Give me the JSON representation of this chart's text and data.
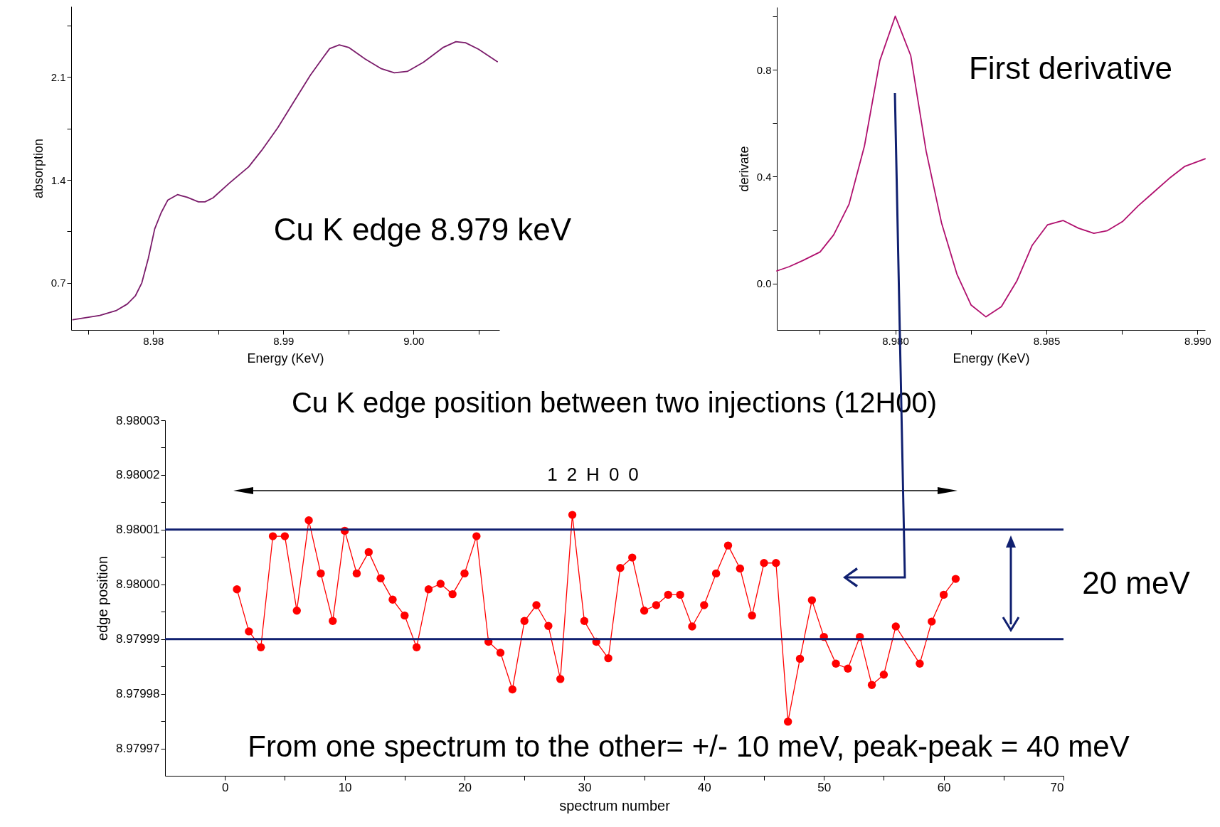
{
  "chart_data": [
    {
      "type": "line",
      "xlabel": "Energy (KeV)",
      "ylabel": "absorption",
      "annotations": [
        "Cu K edge 8.979 keV"
      ],
      "xlim": [
        8.9737,
        9.0066
      ],
      "xticks": [
        {
          "value": 8.975,
          "label": null
        },
        8.98,
        {
          "value": 8.985,
          "label": null
        },
        8.99,
        {
          "value": 8.995,
          "label": null
        },
        {
          "value": 9,
          "label": "9.00"
        },
        {
          "value": 9.005,
          "label": null
        }
      ],
      "ylim": [
        0.38,
        2.58
      ],
      "yticks": [
        0.7,
        {
          "value": 1.05,
          "label": null
        },
        1.4,
        {
          "value": 1.75,
          "label": null
        },
        2.1,
        {
          "value": 2.45,
          "label": null
        }
      ],
      "series": [
        {
          "color": "#7b1c6b",
          "x": [
            8.97383,
            8.9759,
            8.97714,
            8.97801,
            8.97863,
            8.97913,
            8.97963,
            8.98012,
            8.98062,
            8.98112,
            8.98187,
            8.98261,
            8.98348,
            8.98398,
            8.9846,
            8.98585,
            8.98734,
            8.98833,
            8.98958,
            8.99082,
            8.99207,
            8.99306,
            8.99356,
            8.9943,
            8.99505,
            8.99629,
            8.99754,
            8.99853,
            8.99953,
            9.00077,
            9.00226,
            9.00326,
            9.004,
            9.005,
            9.00644
          ],
          "values": [
            0.449,
            0.478,
            0.511,
            0.556,
            0.611,
            0.7,
            0.867,
            1.067,
            1.178,
            1.262,
            1.3,
            1.282,
            1.251,
            1.251,
            1.278,
            1.378,
            1.489,
            1.6,
            1.756,
            1.933,
            2.111,
            2.233,
            2.293,
            2.318,
            2.3,
            2.222,
            2.156,
            2.129,
            2.138,
            2.2,
            2.3,
            2.34,
            2.333,
            2.289,
            2.204
          ]
        }
      ]
    },
    {
      "type": "line",
      "xlabel": "Energy (KeV)",
      "ylabel": "derivate",
      "annotations": [
        "First derivative"
      ],
      "xlim": [
        8.97608,
        8.99025
      ],
      "xticks": [
        {
          "value": 8.9775,
          "label": null
        },
        {
          "value": 8.98,
          "label": "8.980"
        },
        {
          "value": 8.9825,
          "label": null
        },
        8.985,
        {
          "value": 8.9875,
          "label": null
        },
        {
          "value": 8.99,
          "label": "8.990"
        }
      ],
      "ylim": [
        -0.174,
        1.035
      ],
      "yticks": [
        {
          "value": 0,
          "label": "0.0"
        },
        {
          "value": 0.2,
          "label": null
        },
        0.4,
        {
          "value": 0.6,
          "label": null
        },
        0.8,
        {
          "value": 1,
          "label": null
        }
      ],
      "series": [
        {
          "color": "#b0106e",
          "x": [
            8.97608,
            8.97649,
            8.97694,
            8.97751,
            8.97796,
            8.97847,
            8.97898,
            8.97949,
            8.98,
            8.98051,
            8.98102,
            8.98153,
            8.98204,
            8.98251,
            8.983,
            8.98351,
            8.98402,
            8.98453,
            8.98504,
            8.98555,
            8.98606,
            8.98657,
            8.98702,
            8.98753,
            8.98804,
            8.98855,
            8.98906,
            8.98957,
            8.99025
          ],
          "values": [
            0.047,
            0.063,
            0.086,
            0.118,
            0.182,
            0.297,
            0.515,
            0.835,
            1.001,
            0.854,
            0.496,
            0.227,
            0.035,
            -0.081,
            -0.125,
            -0.087,
            0.009,
            0.143,
            0.22,
            0.236,
            0.207,
            0.188,
            0.198,
            0.233,
            0.291,
            0.342,
            0.393,
            0.438,
            0.467
          ]
        }
      ]
    },
    {
      "type": "line",
      "title": "Cu K edge position between two injections (12H00)",
      "xlabel": "spectrum number",
      "ylabel": "edge position",
      "marker": "circle",
      "annotations": [
        "12H00",
        "20 meV",
        "From one spectrum to the other= +/- 10 meV, peak-peak = 40 meV"
      ],
      "xlim": [
        -5,
        70
      ],
      "xticks": [
        0,
        {
          "value": 5,
          "label": null
        },
        10,
        {
          "value": 15,
          "label": null
        },
        20,
        {
          "value": 25,
          "label": null
        },
        30,
        {
          "value": 35,
          "label": null
        },
        40,
        {
          "value": 45,
          "label": null
        },
        50,
        {
          "value": 55,
          "label": null
        },
        60,
        {
          "value": 65,
          "label": null
        },
        70
      ],
      "ylim": [
        8.979965,
        8.98003
      ],
      "yticks": [
        8.97997,
        {
          "value": 8.979975,
          "label": null
        },
        8.97998,
        {
          "value": 8.979985,
          "label": null
        },
        8.97999,
        {
          "value": 8.979995,
          "label": null
        },
        {
          "value": 8.98,
          "label": "8.98000"
        },
        {
          "value": 8.980005,
          "label": null
        },
        8.98001,
        {
          "value": 8.980015,
          "label": null
        },
        8.98002,
        {
          "value": 8.980025,
          "label": null
        },
        8.98003
      ],
      "ref_lines": [
        {
          "axis": "y",
          "value": 8.98001,
          "color": "#102070"
        },
        {
          "axis": "y",
          "value": 8.97999,
          "color": "#102070"
        }
      ],
      "series": [
        {
          "color": "#ff0000",
          "x": [
            1,
            2,
            3,
            4,
            5,
            6,
            7,
            8,
            9,
            10,
            11,
            12,
            13,
            14,
            15,
            16,
            17,
            18,
            19,
            20,
            21,
            22,
            23,
            24,
            25,
            26,
            27,
            28,
            29,
            30,
            31,
            32,
            33,
            34,
            35,
            36,
            37,
            38,
            39,
            40,
            41,
            42,
            43,
            44,
            45,
            46,
            47,
            48,
            49,
            50,
            51,
            52,
            53,
            54,
            55,
            56,
            58,
            59,
            60,
            61
          ],
          "values": [
            8.9799991,
            8.9799914,
            8.9799885,
            8.9800088,
            8.9800088,
            8.9799952,
            8.9800117,
            8.980002,
            8.9799933,
            8.9800098,
            8.980002,
            8.9800059,
            8.9800011,
            8.9799972,
            8.9799943,
            8.9799885,
            8.9799991,
            8.9800001,
            8.9799982,
            8.980002,
            8.9800088,
            8.9799895,
            8.9799875,
            8.9799808,
            8.9799933,
            8.9799962,
            8.9799924,
            8.9799827,
            8.9800127,
            8.9799933,
            8.9799895,
            8.9799865,
            8.980003,
            8.9800049,
            8.9799952,
            8.9799962,
            8.9799981,
            8.9799981,
            8.9799923,
            8.9799962,
            8.980002,
            8.9800071,
            8.9800029,
            8.9799943,
            8.9800039,
            8.9800039,
            8.9799749,
            8.9799864,
            8.9799971,
            8.9799904,
            8.9799855,
            8.9799846,
            8.9799904,
            8.9799816,
            8.9799835,
            8.9799923,
            8.9799855,
            8.9799932,
            8.9799981,
            8.980001
          ]
        }
      ]
    }
  ]
}
